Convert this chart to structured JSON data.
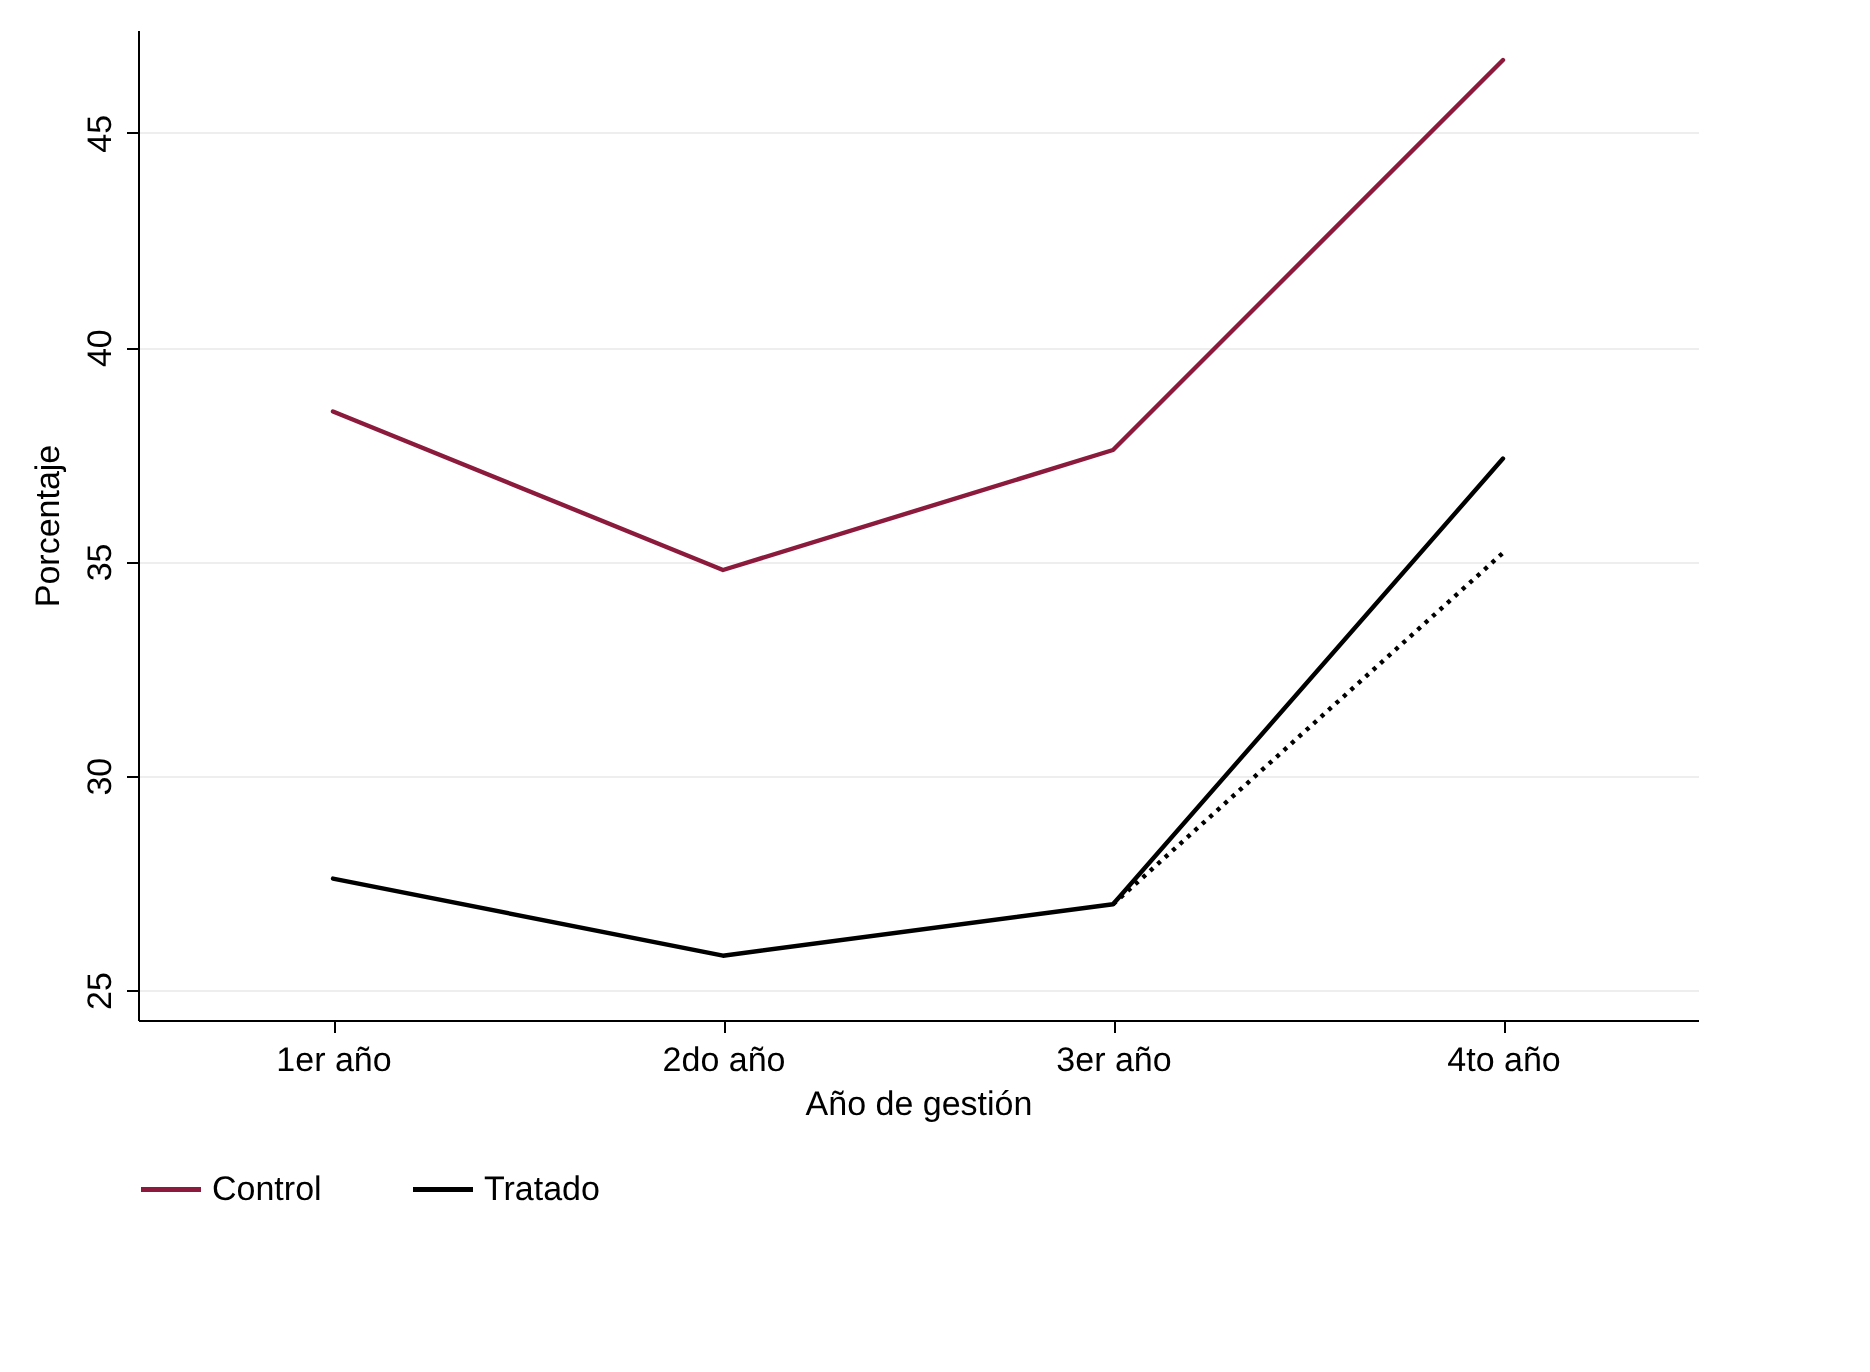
{
  "chart_data": {
    "type": "line",
    "xlabel": "Año de gestión",
    "ylabel": "Porcentaje",
    "categories": [
      "1er año",
      "2do año",
      "3er año",
      "4to año"
    ],
    "series": [
      {
        "name": "Control",
        "color": "#8b1a3c",
        "values": [
          38.5,
          34.8,
          37.6,
          46.7
        ]
      },
      {
        "name": "Tratado",
        "color": "#000000",
        "values": [
          27.6,
          25.8,
          27.0,
          37.4
        ]
      },
      {
        "color": "#000000",
        "line_style": "dotted",
        "values": [
          null,
          null,
          27.0,
          35.2
        ]
      }
    ],
    "ylim": [
      24.3,
      47.4
    ],
    "yticks": [
      25,
      30,
      35,
      40,
      45
    ],
    "grid": "y",
    "legend": "bottom",
    "line_style": "solid",
    "marker": "none"
  }
}
